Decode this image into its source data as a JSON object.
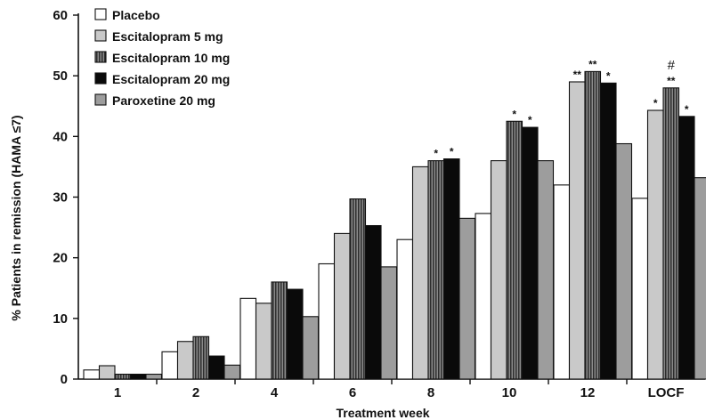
{
  "chart_data": {
    "type": "bar",
    "xlabel": "Treatment week",
    "ylabel": "% Patients in remission (HAMA ≤7)",
    "ylim": [
      0,
      60
    ],
    "yticks": [
      0,
      10,
      20,
      30,
      40,
      50,
      60
    ],
    "grid": false,
    "legend_position": "top-left",
    "categories": [
      "1",
      "2",
      "4",
      "6",
      "8",
      "10",
      "12",
      "LOCF"
    ],
    "series": [
      {
        "name": "Placebo",
        "color": "#ffffff",
        "values": [
          1.5,
          4.5,
          13.3,
          19,
          23,
          27.3,
          32,
          29.8
        ],
        "sig": [
          "",
          "",
          "",
          "",
          "",
          "",
          "",
          ""
        ]
      },
      {
        "name": "Escitalopram 5 mg",
        "color": "#c9c9c9",
        "values": [
          2.2,
          6.2,
          12.5,
          24,
          35,
          36,
          49,
          44.3
        ],
        "sig": [
          "",
          "",
          "",
          "",
          "",
          "",
          "**",
          "*"
        ]
      },
      {
        "name": "Escitalopram 10 mg",
        "color": "#555555",
        "pattern": "stripes",
        "values": [
          0.8,
          7,
          16,
          29.7,
          36,
          42.5,
          50.7,
          48
        ],
        "sig": [
          "",
          "",
          "",
          "",
          "*",
          "*",
          "**",
          "**"
        ],
        "sig_extra": [
          "",
          "",
          "",
          "",
          "",
          "",
          "",
          "#"
        ]
      },
      {
        "name": "Escitalopram 20 mg",
        "color": "#0a0a0a",
        "values": [
          0.8,
          3.8,
          14.8,
          25.3,
          36.3,
          41.5,
          48.8,
          43.3
        ],
        "sig": [
          "",
          "",
          "",
          "",
          "*",
          "*",
          "*",
          "*"
        ]
      },
      {
        "name": "Paroxetine 20 mg",
        "color": "#9d9d9d",
        "values": [
          0.8,
          2.3,
          10.3,
          18.5,
          26.5,
          36,
          38.8,
          33.2
        ],
        "sig": [
          "",
          "",
          "",
          "",
          "",
          "",
          "",
          ""
        ]
      }
    ]
  }
}
